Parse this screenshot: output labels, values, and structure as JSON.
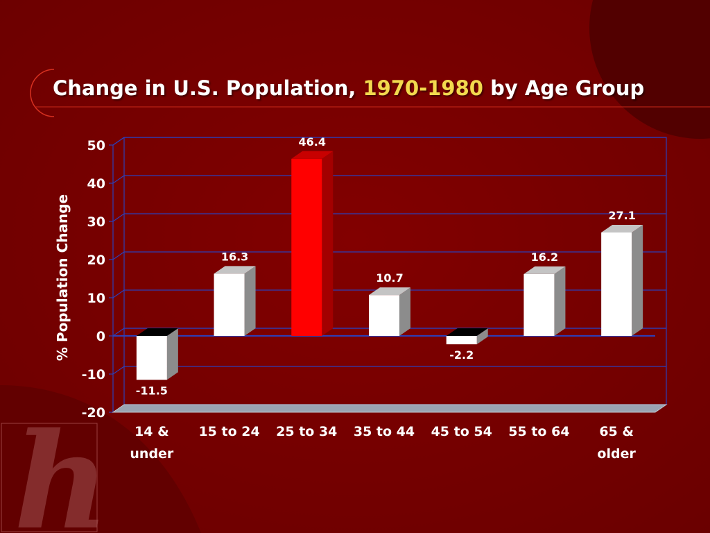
{
  "slide": {
    "title_pre": "Change in U.S. Population, ",
    "title_highlight": "1970-1980",
    "title_post": " by Age Group",
    "logo_letter": "h"
  },
  "colors": {
    "background": "#7a0000",
    "highlight_bar": "#ff0000",
    "bar": "#ffffff",
    "title_highlight": "#f2d94e",
    "gridline": "#2c3fb8"
  },
  "chart_data": {
    "type": "bar",
    "title": "Change in U.S. Population, 1970-1980 by Age Group",
    "xlabel": "",
    "ylabel": "% Population Change",
    "categories": [
      "14 & under",
      "15 to 24",
      "25 to 34",
      "35 to 44",
      "45 to 54",
      "55 to 64",
      "65 & older"
    ],
    "category_lines": [
      [
        "14 &",
        "under"
      ],
      [
        "15 to 24"
      ],
      [
        "25 to 34"
      ],
      [
        "35 to 44"
      ],
      [
        "45 to 54"
      ],
      [
        "55 to 64"
      ],
      [
        "65 &",
        "older"
      ]
    ],
    "values": [
      -11.5,
      16.3,
      46.4,
      10.7,
      -2.2,
      16.2,
      27.1
    ],
    "value_labels": [
      "-11.5",
      "16.3",
      "46.4",
      "10.7",
      "-2.2",
      "16.2",
      "27.1"
    ],
    "highlight_index": 2,
    "ylim": [
      -20,
      50
    ],
    "yticks": [
      -20,
      -10,
      0,
      10,
      20,
      30,
      40,
      50
    ],
    "grid": true,
    "legend": false
  }
}
